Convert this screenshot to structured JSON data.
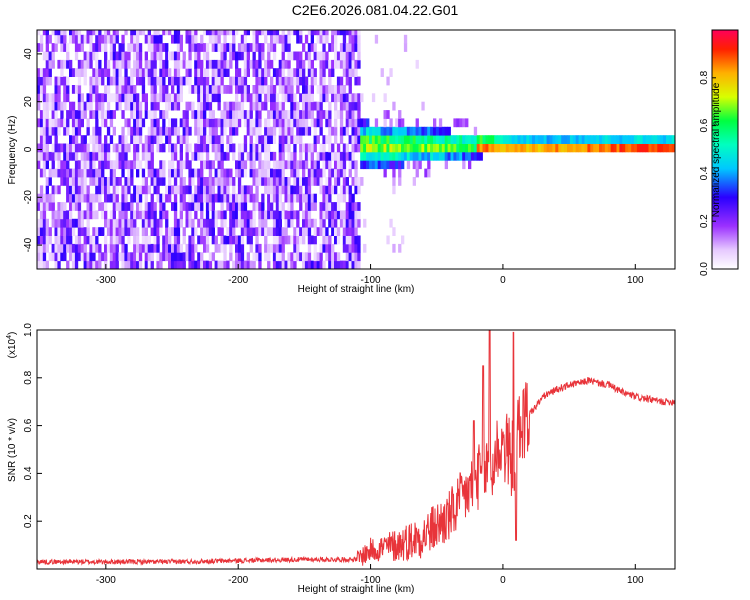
{
  "title": "C2E6.2026.081.04.22.G01",
  "chart_data": [
    {
      "type": "heatmap",
      "xlabel": "Height of straight line (km)",
      "ylabel": "Frequency (Hz)",
      "xlim": [
        -352,
        130
      ],
      "ylim": [
        -50,
        50
      ],
      "x_ticks": [
        -300,
        -200,
        -100,
        0,
        100
      ],
      "y_ticks": [
        -40,
        -20,
        0,
        20,
        40
      ],
      "colorbar": {
        "label": "Normalized spectral amplitude",
        "range": [
          0,
          1
        ],
        "ticks": [
          0.0,
          0.2,
          0.4,
          0.6,
          0.8
        ],
        "colormap": "rainbow (magenta-blue-cyan-green-yellow-red)"
      },
      "description_values": {
        "noise_region_x": [
          -352,
          -110
        ],
        "noise_amplitude": 0.1,
        "signal_onset_x": -110,
        "signal_center_freq": 0,
        "signal_peak_amplitude": 1.0
      }
    },
    {
      "type": "line",
      "xlabel": "Height of straight line (km)",
      "ylabel": "SNR (10 * v/v)",
      "yscale_label": "(x10",
      "yscale_exp": "4",
      "xlim": [
        -352,
        130
      ],
      "ylim": [
        0.0,
        1.0
      ],
      "x_ticks": [
        -300,
        -200,
        -100,
        0,
        100
      ],
      "y_ticks": [
        0.2,
        0.4,
        0.6,
        0.8,
        1.0
      ],
      "series": [
        {
          "color": "#e8343a",
          "x": [
            -352,
            -300,
            -250,
            -200,
            -150,
            -110,
            -100,
            -80,
            -60,
            -50,
            -40,
            -30,
            -25,
            -20,
            -15,
            -12,
            -10,
            -8,
            -5,
            0,
            5,
            8,
            10,
            12,
            15,
            20,
            25,
            30,
            40,
            50,
            60,
            65,
            70,
            80,
            90,
            100,
            110,
            120,
            130
          ],
          "values": [
            0.03,
            0.03,
            0.03,
            0.035,
            0.04,
            0.04,
            0.08,
            0.1,
            0.14,
            0.18,
            0.22,
            0.3,
            0.33,
            0.38,
            0.4,
            0.42,
            0.45,
            0.4,
            0.5,
            0.52,
            0.48,
            0.45,
            0.55,
            0.58,
            0.62,
            0.65,
            0.68,
            0.72,
            0.75,
            0.77,
            0.78,
            0.79,
            0.78,
            0.77,
            0.74,
            0.72,
            0.71,
            0.7,
            0.7
          ],
          "spikes": [
            {
              "x": -22,
              "value": 0.62
            },
            {
              "x": -15,
              "value": 0.85
            },
            {
              "x": -10,
              "value": 1.0
            },
            {
              "x": 8,
              "value": 0.99
            },
            {
              "x": 10,
              "value": 0.12
            }
          ]
        }
      ]
    }
  ]
}
